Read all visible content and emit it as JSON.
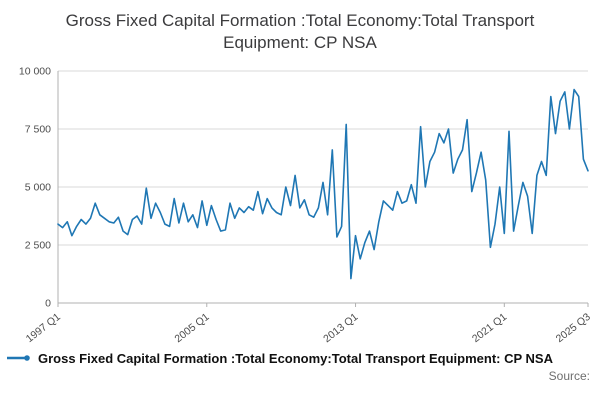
{
  "chart_data": {
    "type": "line",
    "title": "Gross Fixed Capital Formation :Total Economy:Total Transport Equipment: CP NSA",
    "xlabel": "",
    "ylabel": "",
    "ylim": [
      0,
      10000
    ],
    "grid": "horizontal",
    "legend_position": "bottom",
    "x_start": "1997 Q1",
    "x_end": "2025 Q3",
    "frequency": "quarterly",
    "y_ticks": [
      {
        "value": 0,
        "label": "0"
      },
      {
        "value": 2500,
        "label": "2 500"
      },
      {
        "value": 5000,
        "label": "5 000"
      },
      {
        "value": 7500,
        "label": "7 500"
      },
      {
        "value": 10000,
        "label": "10 000"
      }
    ],
    "x_ticks": [
      {
        "index": 0,
        "label": "1997 Q1"
      },
      {
        "index": 32,
        "label": "2005 Q1"
      },
      {
        "index": 64,
        "label": "2013 Q1"
      },
      {
        "index": 96,
        "label": "2021 Q1"
      },
      {
        "index": 114,
        "label": "2025 Q3"
      }
    ],
    "series": [
      {
        "name": "Gross Fixed Capital Formation :Total Economy:Total Transport Equipment: CP NSA",
        "color": "#1f77b4",
        "values": [
          3400,
          3250,
          3500,
          2900,
          3300,
          3600,
          3400,
          3650,
          4300,
          3800,
          3650,
          3500,
          3450,
          3700,
          3100,
          2950,
          3600,
          3750,
          3400,
          4950,
          3650,
          4300,
          3900,
          3400,
          3300,
          4500,
          3450,
          4300,
          3500,
          3800,
          3250,
          4400,
          3350,
          4200,
          3600,
          3100,
          3150,
          4300,
          3650,
          4100,
          3900,
          4150,
          4000,
          4800,
          3850,
          4500,
          4100,
          3900,
          3800,
          5000,
          4200,
          5500,
          4100,
          4450,
          3800,
          3700,
          4100,
          5200,
          3800,
          6600,
          2850,
          3300,
          7700,
          1050,
          2900,
          1900,
          2600,
          3100,
          2300,
          3500,
          4400,
          4200,
          4000,
          4800,
          4300,
          4400,
          5100,
          4300,
          7600,
          5000,
          6100,
          6500,
          7300,
          6900,
          7500,
          5600,
          6200,
          6600,
          7900,
          4800,
          5600,
          6500,
          5300,
          2400,
          3400,
          5000,
          3000,
          7400,
          3100,
          4200,
          5200,
          4600,
          3000,
          5500,
          6100,
          5500,
          8900,
          7300,
          8700,
          9100,
          7500,
          9200,
          8900,
          6200,
          5700
        ]
      }
    ]
  },
  "footer": {
    "source_label": "Source:"
  }
}
